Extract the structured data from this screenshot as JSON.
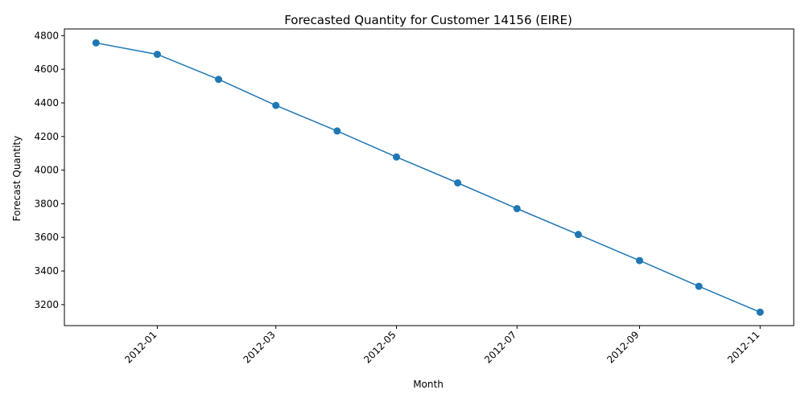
{
  "chart_data": {
    "type": "line",
    "title": "Forecasted Quantity for Customer 14156 (EIRE)",
    "xlabel": "Month",
    "ylabel": "Forecast Quantity",
    "grid": false,
    "legend": "none",
    "x": [
      "2011-12-01",
      "2012-01-01",
      "2012-02-01",
      "2012-03-01",
      "2012-04-01",
      "2012-05-01",
      "2012-06-01",
      "2012-07-01",
      "2012-08-01",
      "2012-09-01",
      "2012-10-01",
      "2012-11-01"
    ],
    "y": [
      4757,
      4689,
      4540,
      4385,
      4233,
      4078,
      3924,
      3771,
      3617,
      3462,
      3309,
      3155
    ],
    "xlim": [
      "2011-11-15",
      "2012-11-18"
    ],
    "ylim": [
      3075,
      4840
    ],
    "x_ticks": [
      "2012-01",
      "2012-03",
      "2012-05",
      "2012-07",
      "2012-09",
      "2012-11"
    ],
    "x_tick_dates": [
      "2012-01-01",
      "2012-03-01",
      "2012-05-01",
      "2012-07-01",
      "2012-09-01",
      "2012-11-01"
    ],
    "y_ticks": [
      3200,
      3400,
      3600,
      3800,
      4000,
      4200,
      4400,
      4600,
      4800
    ],
    "color": "#1f77b4"
  }
}
